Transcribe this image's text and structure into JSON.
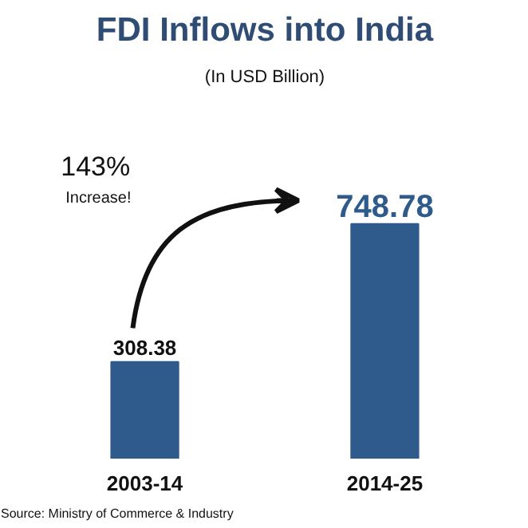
{
  "chart_data": {
    "type": "bar",
    "title": "FDI Inflows into India",
    "subtitle": "(In USD Billion)",
    "categories": [
      "2003-14",
      "2014-25"
    ],
    "values": [
      308.38,
      748.78
    ],
    "color": "#2f5a8c",
    "data_labels": true,
    "grid": false,
    "annotations": [
      "143%",
      "Increase!",
      "Source: Ministry of Commerce & Industry"
    ]
  }
}
